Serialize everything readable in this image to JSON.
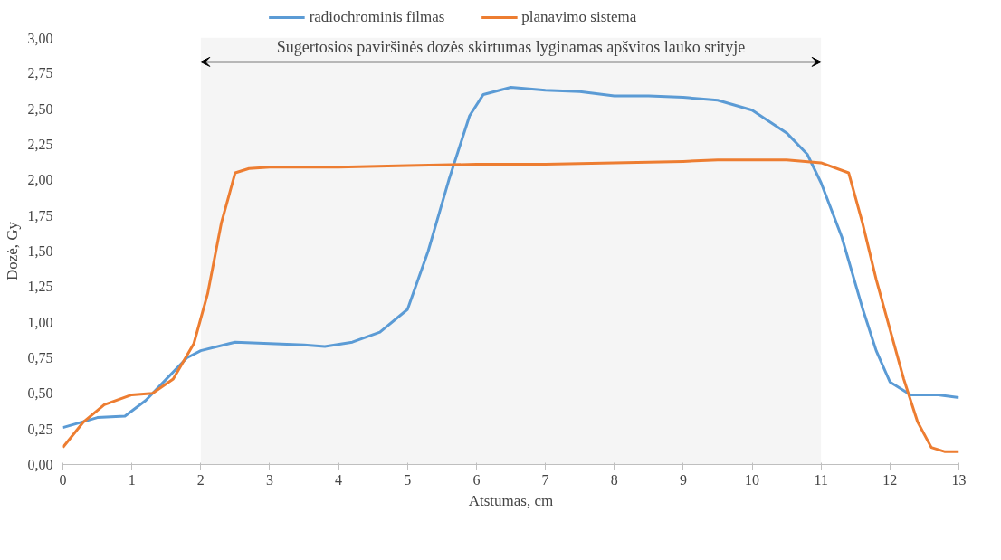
{
  "chart_data": {
    "type": "line",
    "xlabel": "Atstumas, cm",
    "ylabel": "Dozė, Gy",
    "xlim": [
      0,
      13
    ],
    "xticks": [
      0,
      1,
      2,
      3,
      4,
      5,
      6,
      7,
      8,
      9,
      10,
      11,
      12,
      13
    ],
    "ylim": [
      0,
      3
    ],
    "yticks": [
      {
        "value": 0,
        "label": "0,00"
      },
      {
        "value": 0.25,
        "label": "0,25"
      },
      {
        "value": 0.5,
        "label": "0,50"
      },
      {
        "value": 0.75,
        "label": "0,75"
      },
      {
        "value": 1,
        "label": "1,00"
      },
      {
        "value": 1.25,
        "label": "1,25"
      },
      {
        "value": 1.5,
        "label": "1,50"
      },
      {
        "value": 1.75,
        "label": "1,75"
      },
      {
        "value": 2,
        "label": "2,00"
      },
      {
        "value": 2.25,
        "label": "2,25"
      },
      {
        "value": 2.5,
        "label": "2,50"
      },
      {
        "value": 2.75,
        "label": "2,75"
      },
      {
        "value": 3,
        "label": "3,00"
      }
    ],
    "grid": false,
    "legend": "top",
    "bands": [
      {
        "axis": "x",
        "from": 2,
        "to": 11,
        "label": "Sugertosios paviršinės dozės skirtumas lyginamas apšvitos lauko srityje",
        "color": "#000000"
      }
    ],
    "series": [
      {
        "name": "radiochrominis filmas",
        "color": "#5b9bd5",
        "x": [
          0,
          0.5,
          0.9,
          1.2,
          1.5,
          1.8,
          2,
          2.5,
          3,
          3.5,
          3.8,
          4.2,
          4.6,
          5,
          5.3,
          5.6,
          5.9,
          6.1,
          6.5,
          7,
          7.5,
          8,
          8.5,
          9,
          9.5,
          10,
          10.5,
          10.8,
          11,
          11.3,
          11.6,
          11.8,
          12,
          12.3,
          12.7,
          13
        ],
        "values": [
          0.26,
          0.33,
          0.34,
          0.45,
          0.6,
          0.75,
          0.8,
          0.86,
          0.85,
          0.84,
          0.83,
          0.86,
          0.93,
          1.09,
          1.5,
          2.0,
          2.45,
          2.6,
          2.65,
          2.63,
          2.62,
          2.59,
          2.59,
          2.58,
          2.56,
          2.49,
          2.33,
          2.18,
          1.98,
          1.6,
          1.1,
          0.8,
          0.58,
          0.49,
          0.49,
          0.47
        ]
      },
      {
        "name": "planavimo sistema",
        "color": "#ed7d31",
        "x": [
          0,
          0.3,
          0.6,
          1,
          1.3,
          1.6,
          1.9,
          2.1,
          2.3,
          2.5,
          2.7,
          3,
          3.5,
          4,
          5,
          6,
          7,
          8,
          9,
          9.5,
          10,
          10.5,
          11,
          11.4,
          11.6,
          11.8,
          12,
          12.2,
          12.4,
          12.6,
          12.8,
          13
        ],
        "values": [
          0.12,
          0.3,
          0.42,
          0.49,
          0.5,
          0.6,
          0.85,
          1.2,
          1.7,
          2.05,
          2.08,
          2.09,
          2.09,
          2.09,
          2.1,
          2.11,
          2.11,
          2.12,
          2.13,
          2.14,
          2.14,
          2.14,
          2.12,
          2.05,
          1.7,
          1.3,
          0.95,
          0.6,
          0.3,
          0.12,
          0.09,
          0.09
        ]
      }
    ]
  }
}
